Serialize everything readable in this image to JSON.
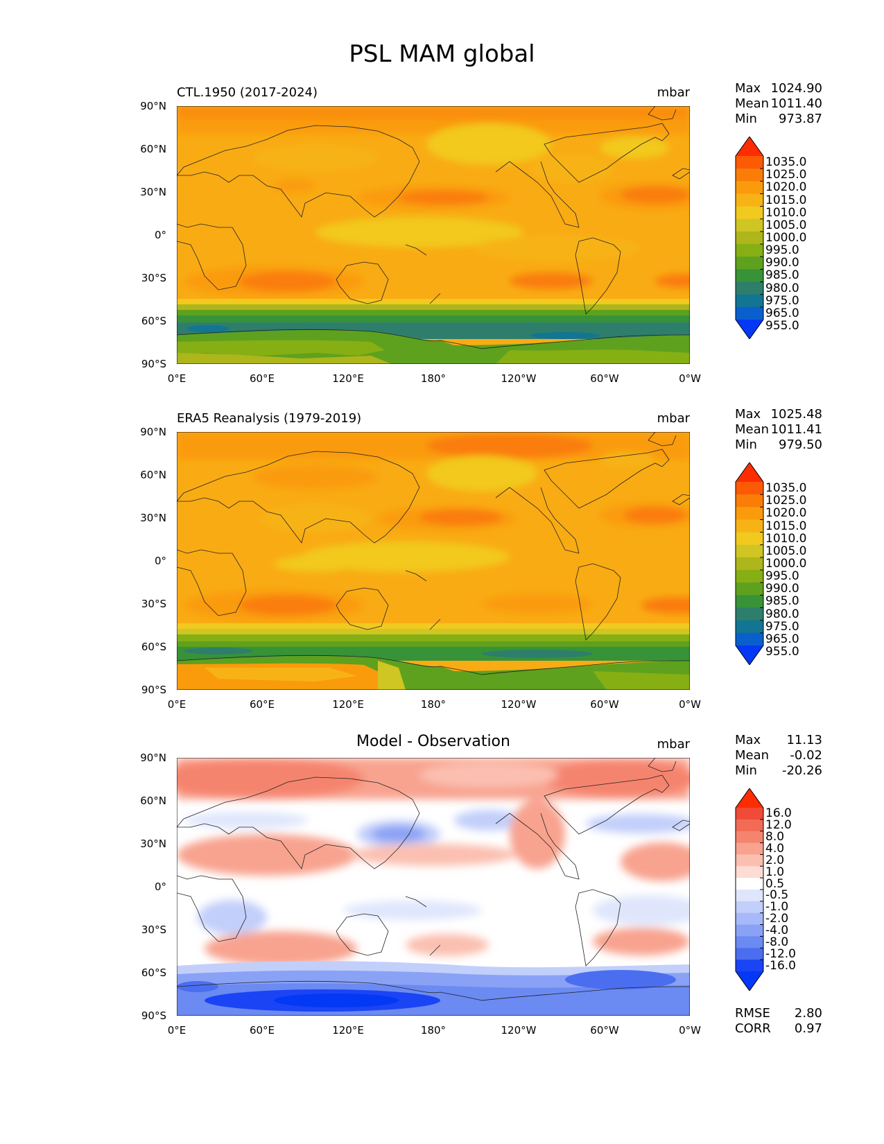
{
  "figure_title": "PSL MAM global",
  "lat_labels": [
    "90°N",
    "60°N",
    "30°N",
    "0°",
    "30°S",
    "60°S",
    "90°S"
  ],
  "lon_labels": [
    "0°E",
    "60°E",
    "120°E",
    "180°",
    "120°W",
    "60°W",
    "0°W"
  ],
  "panels": [
    {
      "title": "CTL.1950 (2017-2024)",
      "units": "mbar",
      "stats": {
        "max_label": "Max",
        "max": "1024.90",
        "mean_label": "Mean",
        "mean": "1011.40",
        "min_label": "Min",
        "min": "973.87"
      },
      "colorbar": {
        "labels": [
          "1035.0",
          "1025.0",
          "1020.0",
          "1015.0",
          "1010.0",
          "1005.0",
          "1000.0",
          "995.0",
          "990.0",
          "985.0",
          "980.0",
          "975.0",
          "965.0",
          "955.0"
        ],
        "colors": [
          "#fe2c02",
          "#fd5a05",
          "#fa7d08",
          "#fa9b0c",
          "#f7b316",
          "#f2c91f",
          "#cfc623",
          "#adb61a",
          "#86af14",
          "#5ea11e",
          "#389238",
          "#2e7e6c",
          "#127593",
          "#0b5fcd",
          "#0338f5"
        ]
      }
    },
    {
      "title": "ERA5 Reanalysis (1979-2019)",
      "units": "mbar",
      "stats": {
        "max_label": "Max",
        "max": "1025.48",
        "mean_label": "Mean",
        "mean": "1011.41",
        "min_label": "Min",
        "min": "979.50"
      },
      "colorbar": {
        "labels": [
          "1035.0",
          "1025.0",
          "1020.0",
          "1015.0",
          "1010.0",
          "1005.0",
          "1000.0",
          "995.0",
          "990.0",
          "985.0",
          "980.0",
          "975.0",
          "965.0",
          "955.0"
        ],
        "colors": [
          "#fe2c02",
          "#fd5a05",
          "#fa7d08",
          "#fa9b0c",
          "#f7b316",
          "#f2c91f",
          "#cfc623",
          "#adb61a",
          "#86af14",
          "#5ea11e",
          "#389238",
          "#2e7e6c",
          "#127593",
          "#0b5fcd",
          "#0338f5"
        ]
      }
    },
    {
      "title": "Model - Observation",
      "units": "mbar",
      "stats": {
        "max_label": "Max",
        "max": "11.13",
        "mean_label": "Mean",
        "mean": "-0.02",
        "min_label": "Min",
        "min": "-20.26"
      },
      "colorbar": {
        "labels": [
          "16.0",
          "12.0",
          "8.0",
          "4.0",
          "2.0",
          "1.0",
          "0.5",
          "-0.5",
          "-1.0",
          "-2.0",
          "-4.0",
          "-8.0",
          "-12.0",
          "-16.0"
        ],
        "colors": [
          "#fe2c02",
          "#f14a37",
          "#f16b55",
          "#f5846e",
          "#f8a38f",
          "#fbbfb0",
          "#fedcd3",
          "#ffffff",
          "#dfe6fc",
          "#c2cffa",
          "#a7b9f8",
          "#8aa2f5",
          "#6b8af2",
          "#4b6ef0",
          "#1a44f4",
          "#0338f5"
        ]
      }
    }
  ],
  "diff_metrics": {
    "rmse_label": "RMSE",
    "rmse": "2.80",
    "corr_label": "CORR",
    "corr": "0.97"
  }
}
